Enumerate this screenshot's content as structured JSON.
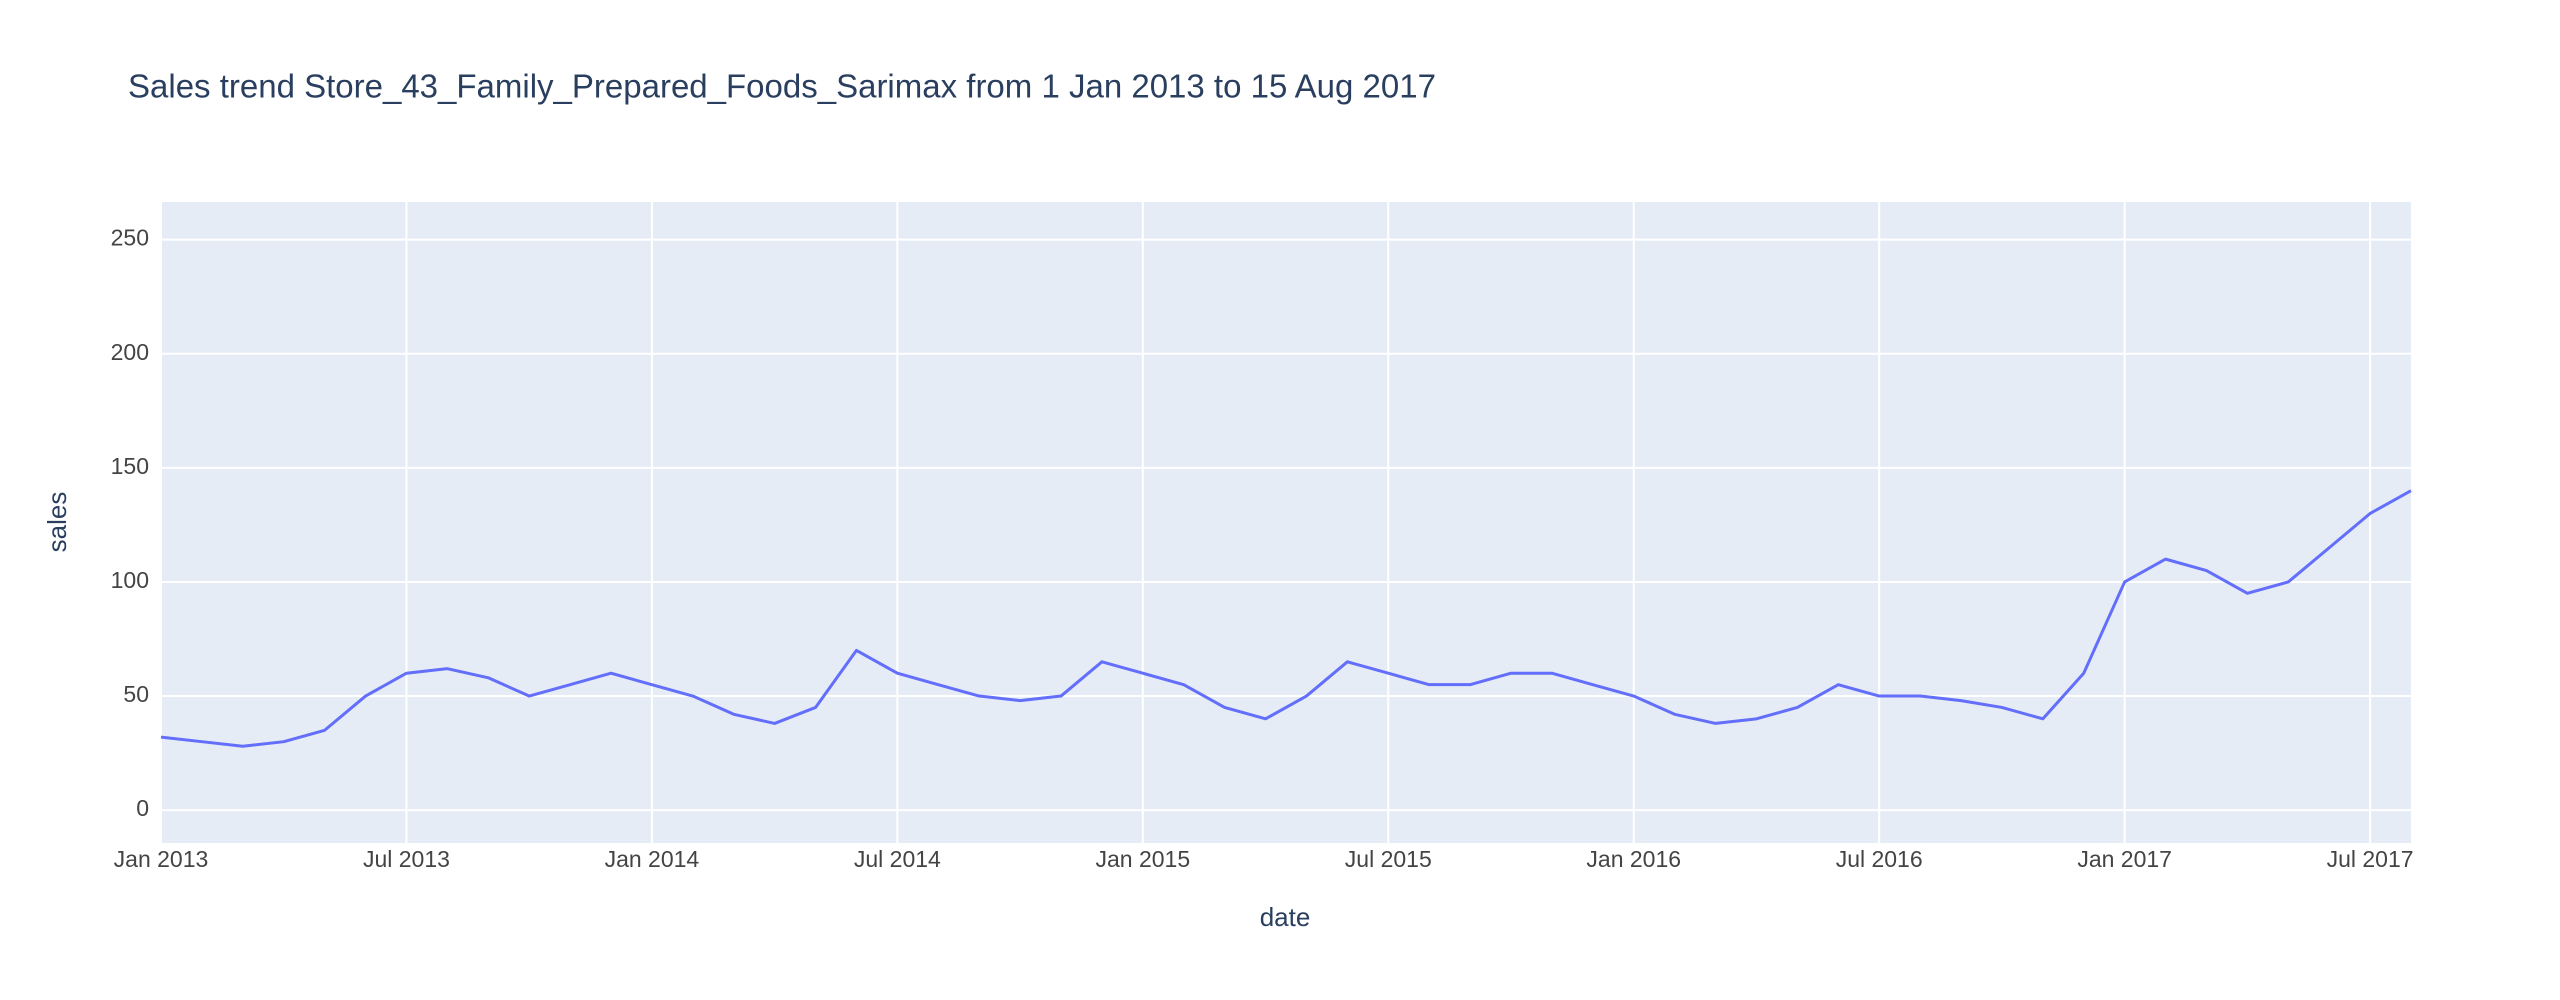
{
  "chart_data": {
    "type": "line",
    "title": "Sales trend Store_43_Family_Prepared_Foods_Sarimax from  1 Jan 2013 to 15 Aug 2017",
    "x_label": "date",
    "y_label": "sales",
    "x": [
      "2013-01",
      "2013-02",
      "2013-03",
      "2013-04",
      "2013-05",
      "2013-06",
      "2013-07",
      "2013-08",
      "2013-09",
      "2013-10",
      "2013-11",
      "2013-12",
      "2014-01",
      "2014-02",
      "2014-03",
      "2014-04",
      "2014-05",
      "2014-06",
      "2014-07",
      "2014-08",
      "2014-09",
      "2014-10",
      "2014-11",
      "2014-12",
      "2015-01",
      "2015-02",
      "2015-03",
      "2015-04",
      "2015-05",
      "2015-06",
      "2015-07",
      "2015-08",
      "2015-09",
      "2015-10",
      "2015-11",
      "2015-12",
      "2016-01",
      "2016-02",
      "2016-03",
      "2016-04",
      "2016-05",
      "2016-06",
      "2016-07",
      "2016-08",
      "2016-09",
      "2016-10",
      "2016-11",
      "2016-12",
      "2017-01",
      "2017-02",
      "2017-03",
      "2017-04",
      "2017-05",
      "2017-06",
      "2017-07",
      "2017-08"
    ],
    "series": [
      {
        "name": "sales",
        "color": "#636efa",
        "values": [
          32,
          30,
          28,
          30,
          35,
          50,
          60,
          62,
          58,
          50,
          55,
          60,
          55,
          50,
          42,
          38,
          45,
          70,
          60,
          55,
          50,
          48,
          50,
          65,
          60,
          55,
          45,
          40,
          50,
          65,
          60,
          55,
          55,
          60,
          60,
          55,
          50,
          42,
          38,
          40,
          45,
          55,
          50,
          50,
          48,
          45,
          40,
          60,
          100,
          110,
          105,
          95,
          100,
          115,
          130,
          140
        ]
      }
    ],
    "xlim": [
      "2013-01",
      "2017-08"
    ],
    "xticks": [
      {
        "value": "2013-01",
        "label": "Jan 2013"
      },
      {
        "value": "2013-07",
        "label": "Jul 2013"
      },
      {
        "value": "2014-01",
        "label": "Jan 2014"
      },
      {
        "value": "2014-07",
        "label": "Jul 2014"
      },
      {
        "value": "2015-01",
        "label": "Jan 2015"
      },
      {
        "value": "2015-07",
        "label": "Jul 2015"
      },
      {
        "value": "2016-01",
        "label": "Jan 2016"
      },
      {
        "value": "2016-07",
        "label": "Jul 2016"
      },
      {
        "value": "2017-01",
        "label": "Jan 2017"
      },
      {
        "value": "2017-07",
        "label": "Jul 2017"
      }
    ],
    "ylim": [
      -14.4,
      266.5
    ],
    "yticks": [
      0,
      50,
      100,
      150,
      200,
      250
    ],
    "grid": true
  }
}
